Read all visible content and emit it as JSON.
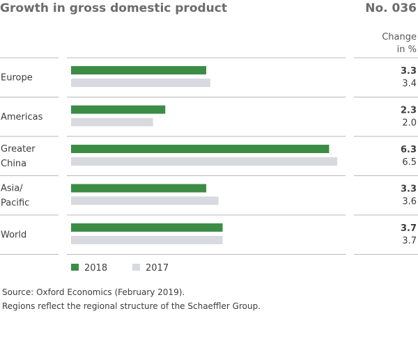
{
  "header": {
    "title": "Growth in gross domestic product",
    "number": "No. 036",
    "change_label_line1": "Change",
    "change_label_line2": "in %"
  },
  "source": {
    "line1": "Source: Oxford Economics (February 2019).",
    "line2": "Regions reflect the regional structure of the Schaeffler Group."
  },
  "colors": {
    "series_2018": "#3c8c46",
    "series_2017": "#d9dadf",
    "divider": "#b8b8b8"
  },
  "chart_data": {
    "type": "bar",
    "orientation": "horizontal",
    "categories": [
      [
        "Europe"
      ],
      [
        "Americas"
      ],
      [
        "Greater",
        "China"
      ],
      [
        "Asia/",
        "Pacific"
      ],
      [
        "World"
      ]
    ],
    "series": [
      {
        "name": "2018",
        "values": [
          3.3,
          2.3,
          6.3,
          3.3,
          3.7
        ],
        "labels": [
          "3.3",
          "2.3",
          "6.3",
          "3.3",
          "3.7"
        ]
      },
      {
        "name": "2017",
        "values": [
          3.4,
          2.0,
          6.5,
          3.6,
          3.7
        ],
        "labels": [
          "3.4",
          "2.0",
          "6.5",
          "3.6",
          "3.7"
        ]
      }
    ],
    "xlim": [
      0,
      6.5
    ],
    "legend_position": "bottom-left",
    "grid": false
  }
}
